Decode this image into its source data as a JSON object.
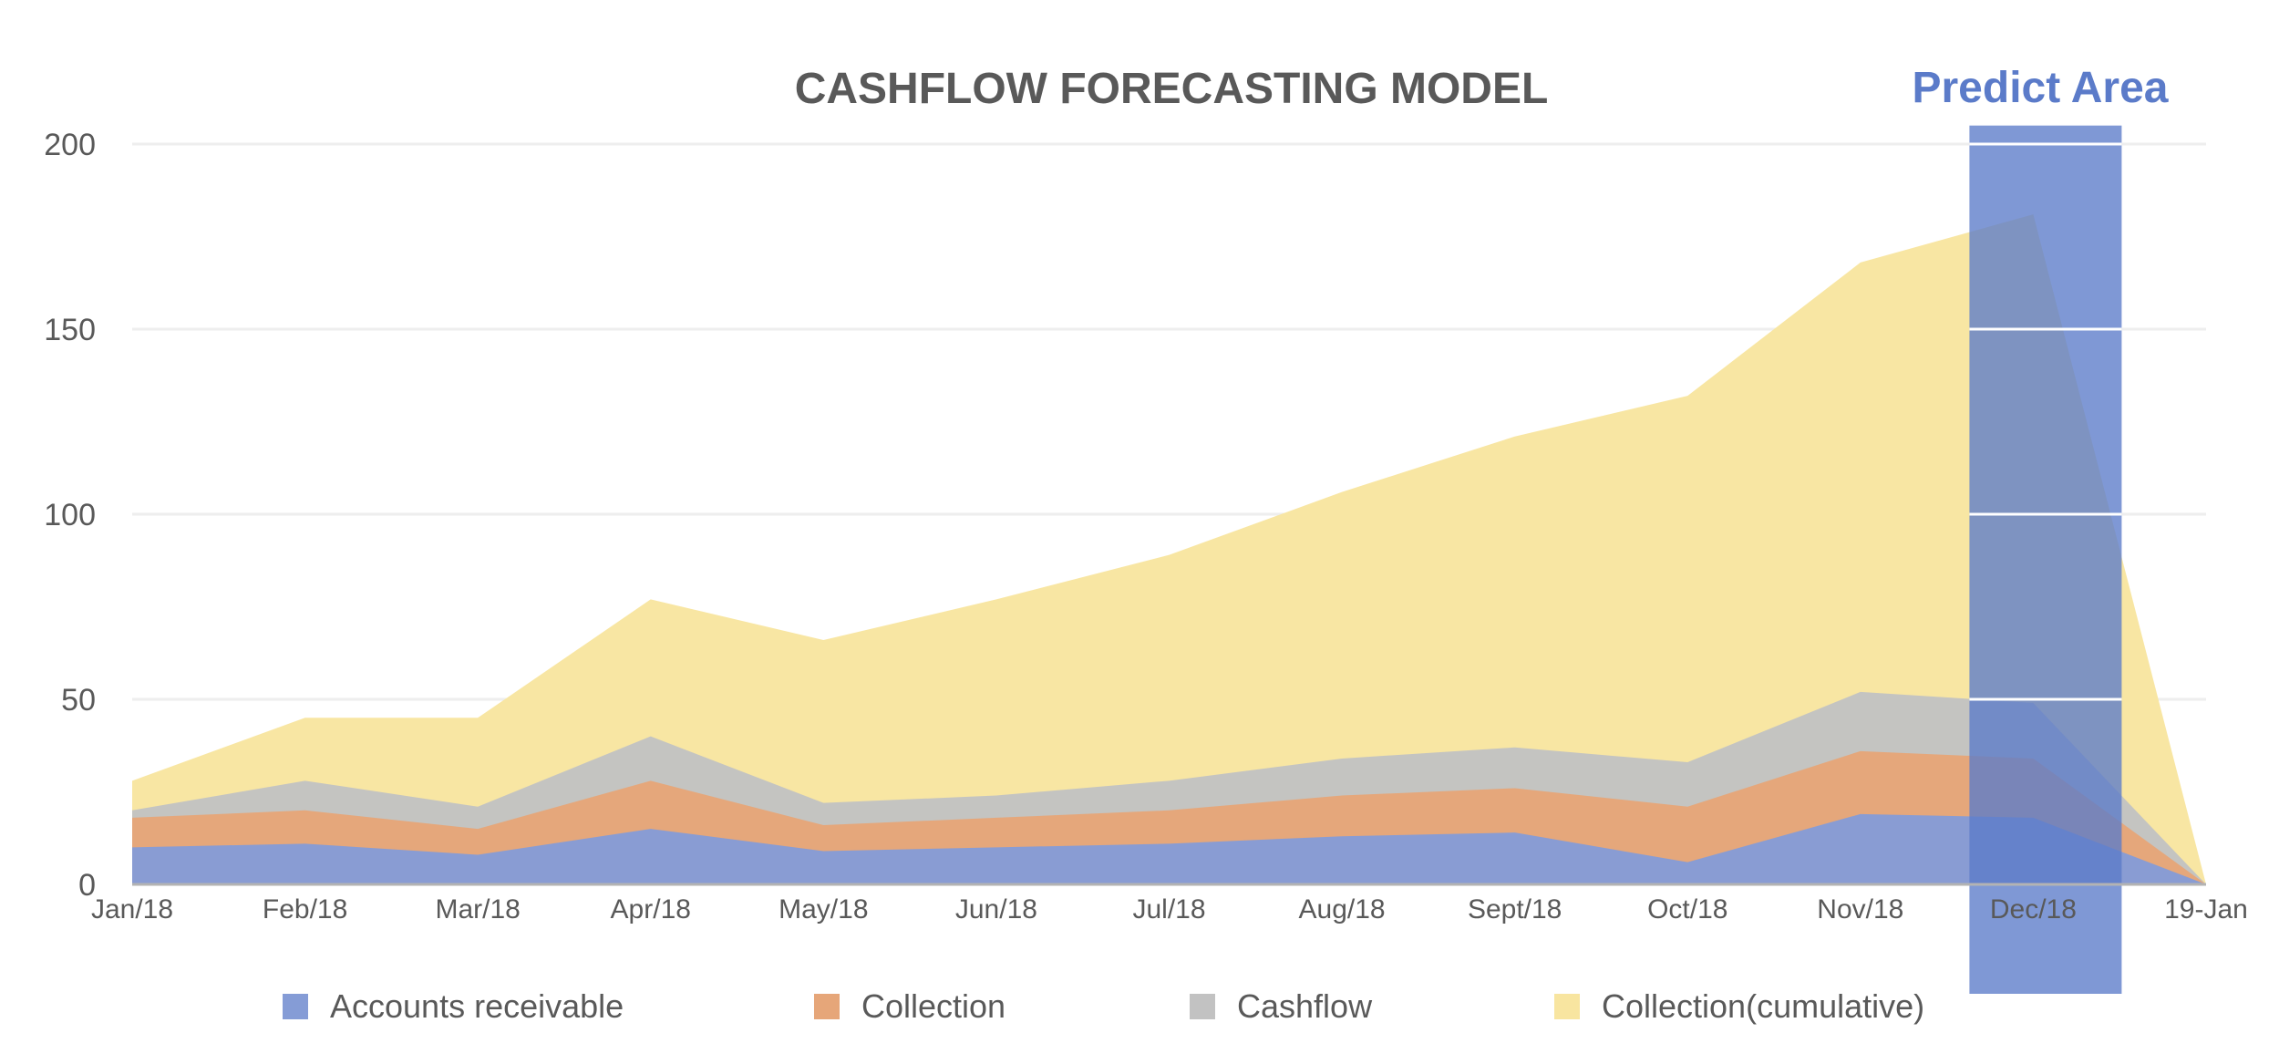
{
  "chart_data": {
    "type": "area",
    "title": "CASHFLOW FORECASTING MODEL",
    "annotation": {
      "label": "Predict Area",
      "category": "Dec/18",
      "color": "#5b7bc9"
    },
    "categories": [
      "Jan/18",
      "Feb/18",
      "Mar/18",
      "Apr/18",
      "May/18",
      "Jun/18",
      "Jul/18",
      "Aug/18",
      "Sept/18",
      "Oct/18",
      "Nov/18",
      "Dec/18",
      "19-Jan"
    ],
    "ylim": [
      0,
      200
    ],
    "yticks": [
      "0",
      "50",
      "100",
      "150",
      "200"
    ],
    "grid": true,
    "stacked": false,
    "series": [
      {
        "name": "Collection(cumulative)",
        "color": "#f8e5a0",
        "values": [
          28,
          45,
          45,
          77,
          66,
          77,
          89,
          106,
          121,
          132,
          168,
          181,
          0
        ]
      },
      {
        "name": "Cashflow",
        "color": "#c2c2c2",
        "values": [
          20,
          28,
          21,
          40,
          22,
          24,
          28,
          34,
          37,
          33,
          52,
          49,
          0
        ]
      },
      {
        "name": "Collection",
        "color": "#e6a679",
        "values": [
          18,
          20,
          15,
          28,
          16,
          18,
          20,
          24,
          26,
          21,
          36,
          34,
          0
        ]
      },
      {
        "name": "Accounts receivable",
        "color": "#859cd6",
        "values": [
          10,
          11,
          8,
          15,
          9,
          10,
          11,
          13,
          14,
          6,
          19,
          18,
          0
        ]
      }
    ],
    "legend": [
      "Accounts receivable",
      "Collection",
      "Cashflow",
      "Collection(cumulative)"
    ],
    "legend_position": "bottom"
  }
}
